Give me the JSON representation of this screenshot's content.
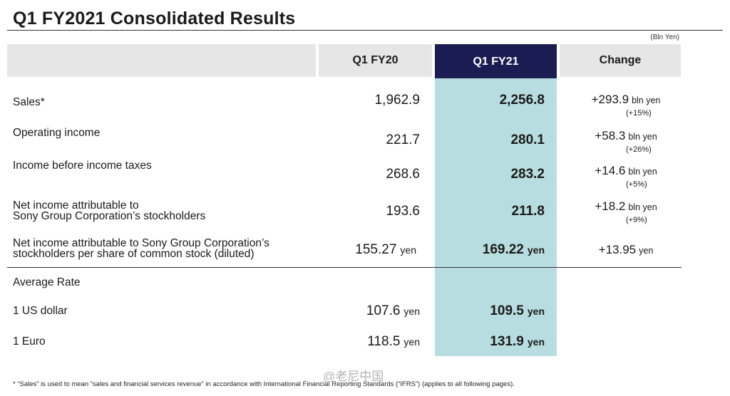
{
  "title": "Q1 FY2021  Consolidated Results",
  "unit_note": "(Bln Yen)",
  "columns": {
    "prev": "Q1 FY20",
    "cur": "Q1 FY21",
    "change": "Change"
  },
  "rows": [
    {
      "label_lines": [
        "Sales*"
      ],
      "prev": "1,962.9",
      "cur": "2,256.8",
      "change": "+293.9",
      "change_unit": "bln yen",
      "pct": "(+15%)"
    },
    {
      "label_lines": [
        "Operating income"
      ],
      "prev": "221.7",
      "cur": "280.1",
      "change": "+58.3",
      "change_unit": "bln yen",
      "pct": "(+26%)"
    },
    {
      "label_lines": [
        "Income before income taxes"
      ],
      "prev": "268.6",
      "cur": "283.2",
      "change": "+14.6",
      "change_unit": "bln yen",
      "pct": "(+5%)"
    },
    {
      "label_lines": [
        "Net income attributable to",
        "Sony Group Corporation’s stockholders"
      ],
      "prev": "193.6",
      "cur": "211.8",
      "change": "+18.2",
      "change_unit": "bln yen",
      "pct": "(+9%)"
    },
    {
      "label_lines": [
        "Net income attributable to Sony Group Corporation’s",
        "stockholders per share of common stock (diluted)"
      ],
      "prev": "155.27",
      "prev_unit": "yen",
      "cur": "169.22",
      "cur_unit": "yen",
      "change": "+13.95",
      "change_unit": "yen"
    }
  ],
  "average_rate": {
    "label": "Average Rate",
    "rows": [
      {
        "label": "1 US dollar",
        "prev": "107.6",
        "prev_unit": "yen",
        "cur": "109.5",
        "cur_unit": "yen"
      },
      {
        "label": "1 Euro",
        "prev": "118.5",
        "prev_unit": "yen",
        "cur": "131.9",
        "cur_unit": "yen"
      }
    ]
  },
  "footnote": "* “Sales” is used to mean “sales and financial services revenue” in accordance with International Financial Reporting Standards (“IFRS”) (applies to all following pages).",
  "watermark": "@老尼中国"
}
